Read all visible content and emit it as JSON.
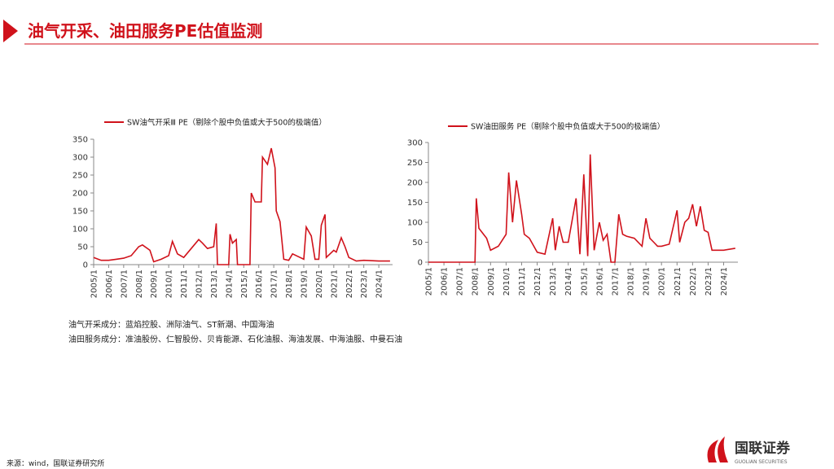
{
  "header": {
    "title": "油气开采、油田服务PE估值监测"
  },
  "chart_data": [
    {
      "type": "line",
      "series": [
        {
          "name": "SW油气开采Ⅲ PE（剔除个股中负值或大于500的极端值）",
          "color": "#d0121b",
          "values": [
            20,
            12,
            12,
            15,
            18,
            25,
            50,
            55,
            40,
            8,
            15,
            25,
            65,
            30,
            20,
            45,
            70,
            60,
            45,
            50,
            115,
            0,
            0,
            85,
            60,
            70,
            0,
            0,
            200,
            175,
            175,
            300,
            280,
            325,
            270,
            150,
            120,
            15,
            12,
            30,
            20,
            15,
            105,
            80,
            15,
            15,
            110,
            140,
            20,
            40,
            35,
            75,
            50,
            20,
            10,
            12,
            10,
            10
          ]
        }
      ],
      "x": [
        "2005/1",
        "2005/7",
        "2006/1",
        "2006/7",
        "2007/1",
        "2007/7",
        "2008/1",
        "2008/4",
        "2008/10",
        "2009/1",
        "2009/7",
        "2010/1",
        "2010/4",
        "2010/8",
        "2011/1",
        "2011/7",
        "2012/1",
        "2012/4",
        "2012/8",
        "2013/1",
        "2013/3",
        "2013/4",
        "2014/1",
        "2014/2",
        "2014/4",
        "2014/7",
        "2014/8",
        "2015/6",
        "2015/7",
        "2015/10",
        "2016/3",
        "2016/4",
        "2016/8",
        "2016/11",
        "2017/2",
        "2017/3",
        "2017/6",
        "2017/9",
        "2018/1",
        "2018/4",
        "2018/10",
        "2019/1",
        "2019/3",
        "2019/7",
        "2019/10",
        "2020/1",
        "2020/3",
        "2020/6",
        "2020/7",
        "2021/1",
        "2021/3",
        "2021/7",
        "2021/10",
        "2022/1",
        "2022/7",
        "2023/1",
        "2024/1",
        "2024/10"
      ],
      "xlim": [
        "2005/1",
        "2024/12"
      ],
      "xticks": [
        "2005/1",
        "2006/1",
        "2007/1",
        "2008/1",
        "2009/1",
        "2010/1",
        "2011/1",
        "2012/1",
        "2013/1",
        "2014/1",
        "2015/1",
        "2016/1",
        "2017/1",
        "2018/1",
        "2019/1",
        "2020/1",
        "2021/1",
        "2022/1",
        "2023/1",
        "2024/1"
      ],
      "ylim": [
        0,
        350
      ],
      "yticks": [
        0,
        50,
        100,
        150,
        200,
        250,
        300,
        350
      ]
    },
    {
      "type": "line",
      "series": [
        {
          "name": "SW油田服务 PE（剔除个股中负值或大于500的极端值）",
          "color": "#d0121b",
          "values": [
            0,
            0,
            160,
            85,
            60,
            30,
            40,
            70,
            225,
            100,
            205,
            120,
            70,
            60,
            25,
            20,
            110,
            30,
            90,
            50,
            50,
            160,
            20,
            220,
            15,
            270,
            30,
            100,
            55,
            70,
            0,
            0,
            120,
            70,
            65,
            60,
            40,
            110,
            60,
            50,
            40,
            40,
            45,
            130,
            50,
            100,
            110,
            145,
            90,
            140,
            80,
            75,
            30,
            30,
            35
          ]
        }
      ],
      "x": [
        "2005/1",
        "2008/1",
        "2008/2",
        "2008/4",
        "2008/10",
        "2009/1",
        "2009/7",
        "2010/1",
        "2010/3",
        "2010/6",
        "2010/9",
        "2011/1",
        "2011/3",
        "2011/7",
        "2012/1",
        "2012/7",
        "2013/1",
        "2013/3",
        "2013/6",
        "2013/9",
        "2014/1",
        "2014/7",
        "2014/10",
        "2015/1",
        "2015/4",
        "2015/6",
        "2015/9",
        "2016/1",
        "2016/4",
        "2016/7",
        "2016/10",
        "2017/1",
        "2017/4",
        "2017/7",
        "2017/10",
        "2018/4",
        "2018/10",
        "2019/1",
        "2019/4",
        "2019/7",
        "2019/10",
        "2020/1",
        "2020/7",
        "2021/1",
        "2021/3",
        "2021/7",
        "2021/10",
        "2022/1",
        "2022/4",
        "2022/7",
        "2022/10",
        "2023/1",
        "2023/4",
        "2024/1",
        "2024/10"
      ],
      "xlim": [
        "2005/1",
        "2024/12"
      ],
      "xticks": [
        "2005/1",
        "2006/1",
        "2007/1",
        "2008/1",
        "2009/1",
        "2010/1",
        "2011/1",
        "2012/1",
        "2013/1",
        "2014/1",
        "2015/1",
        "2016/1",
        "2017/1",
        "2018/1",
        "2019/1",
        "2020/1",
        "2021/1",
        "2022/1",
        "2023/1",
        "2024/1"
      ],
      "ylim": [
        0,
        300
      ],
      "yticks": [
        0,
        50,
        100,
        150,
        200,
        250,
        300
      ]
    }
  ],
  "notes": [
    "油气开采成分：蓝焰控股、洲际油气、ST新潮、中国海油",
    "油田服务成分：准油股份、仁智股份、贝肯能源、石化油服、海油发展、中海油服、中曼石油"
  ],
  "source": "来源：wind，国联证券研究所",
  "logo": {
    "name": "国联证券",
    "sub": "GUOLIAN SECURITIES"
  }
}
